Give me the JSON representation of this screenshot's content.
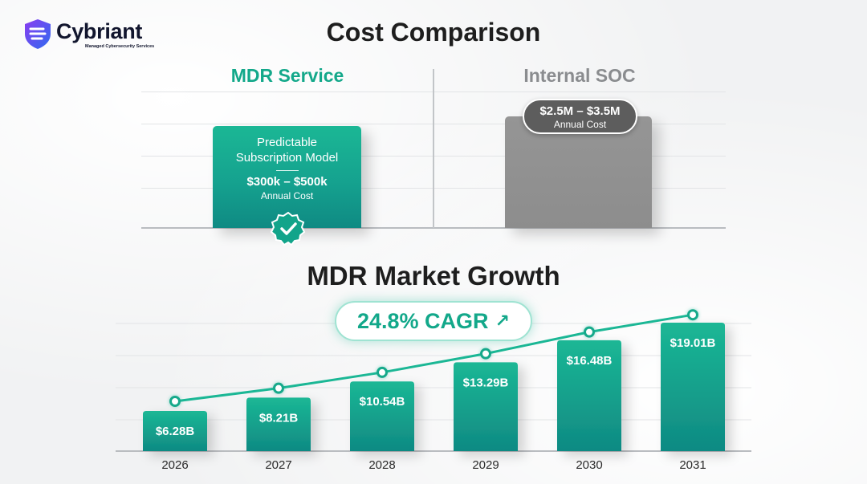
{
  "brand": {
    "name": "Cybriant",
    "tagline": "Managed Cybersecurity Services"
  },
  "cost_comparison": {
    "title": "Cost Comparison",
    "mdr": {
      "heading": "MDR Service",
      "line1": "Predictable",
      "line2": "Subscription Model",
      "range": "$300k – $500k",
      "note": "Annual Cost",
      "badge_icon": "checkmark-badge-icon"
    },
    "soc": {
      "heading": "Internal SOC",
      "range": "$2.5M – $3.5M",
      "note": "Annual Cost"
    },
    "colors": {
      "mdr": "#1bb795",
      "soc": "#8f8f8f"
    }
  },
  "chart_data": {
    "type": "bar",
    "title": "MDR Market Growth",
    "annotation": "24.8% CAGR",
    "annotation_icon": "arrow-up-right-icon",
    "categories": [
      "2026",
      "2027",
      "2028",
      "2029",
      "2030",
      "2031"
    ],
    "series": [
      {
        "values": [
          6.28,
          8.21,
          10.54,
          13.29,
          16.48,
          19.01
        ],
        "labels": [
          "$6.28B",
          "$8.21B",
          "$10.54B",
          "$13.29B",
          "$16.48B",
          "$19.01B"
        ]
      }
    ],
    "trend_line": true,
    "ylim": [
      0,
      22
    ],
    "grid": true,
    "colors": {
      "bar_top": "#1bb795",
      "bar_bottom": "#0f8a83",
      "line": "#1bb795"
    }
  }
}
